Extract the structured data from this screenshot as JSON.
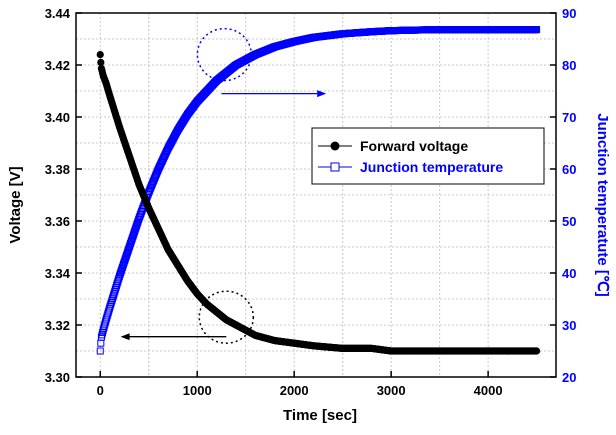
{
  "chart_data": {
    "type": "scatter",
    "title": "",
    "xlabel": "Time [sec]",
    "ylabel_left": "Voltage [V]",
    "ylabel_right": "Junction temperatute [℃]",
    "xlim": [
      -250,
      4700
    ],
    "ylim_left": [
      3.3,
      3.44
    ],
    "ylim_right": [
      20,
      90
    ],
    "x_ticks": [
      0,
      1000,
      2000,
      3000,
      4000
    ],
    "y_left_ticks": [
      "3.30",
      "3.32",
      "3.34",
      "3.36",
      "3.38",
      "3.40",
      "3.42",
      "3.44"
    ],
    "y_right_ticks": [
      "20",
      "30",
      "40",
      "50",
      "60",
      "70",
      "80",
      "90"
    ],
    "grid": true,
    "legend_position": "center-right",
    "series": [
      {
        "name": "Forward voltage",
        "axis": "left",
        "color": "#000000",
        "marker": "filled-circle",
        "x": [
          0,
          10,
          30,
          60,
          100,
          150,
          200,
          300,
          400,
          500,
          600,
          700,
          800,
          900,
          1000,
          1100,
          1200,
          1300,
          1400,
          1500,
          1600,
          1800,
          2000,
          2200,
          2500,
          2800,
          3000,
          3200,
          3500,
          3800,
          4000,
          4200,
          4500
        ],
        "y": [
          3.424,
          3.419,
          3.416,
          3.413,
          3.408,
          3.402,
          3.396,
          3.385,
          3.374,
          3.365,
          3.357,
          3.349,
          3.343,
          3.337,
          3.332,
          3.328,
          3.325,
          3.322,
          3.32,
          3.318,
          3.316,
          3.314,
          3.313,
          3.312,
          3.311,
          3.311,
          3.31,
          3.31,
          3.31,
          3.31,
          3.31,
          3.31,
          3.31
        ]
      },
      {
        "name": "Junction temperature",
        "axis": "right",
        "color": "#0000ff",
        "marker": "open-square",
        "x": [
          0,
          10,
          30,
          60,
          100,
          150,
          200,
          300,
          400,
          500,
          600,
          700,
          800,
          900,
          1000,
          1100,
          1200,
          1300,
          1400,
          1500,
          1600,
          1800,
          2000,
          2200,
          2500,
          2800,
          3000,
          3200,
          3500,
          3800,
          4000,
          4200,
          4500
        ],
        "y": [
          25.0,
          27.5,
          29.0,
          31.0,
          33.5,
          36.5,
          39.5,
          45.0,
          50.5,
          55.5,
          60.0,
          64.0,
          67.5,
          70.5,
          73.0,
          75.0,
          77.0,
          78.5,
          80.0,
          81.0,
          82.0,
          83.5,
          84.5,
          85.3,
          86.0,
          86.4,
          86.6,
          86.7,
          86.8,
          86.8,
          86.8,
          86.8,
          86.8
        ]
      }
    ],
    "annotations": [
      {
        "type": "dotted-circle",
        "target": "Junction temperature",
        "arrow": "right"
      },
      {
        "type": "dotted-circle",
        "target": "Forward voltage",
        "arrow": "left"
      }
    ]
  }
}
